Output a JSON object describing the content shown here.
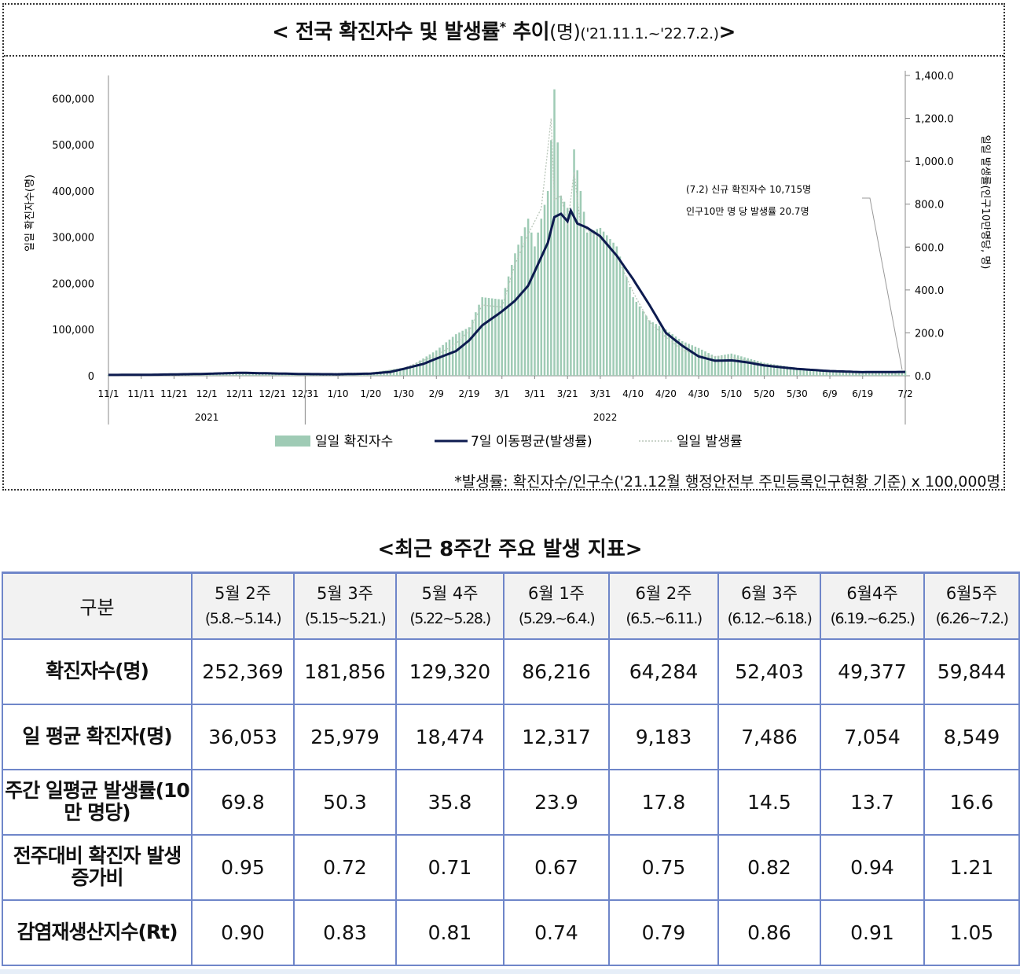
{
  "chart": {
    "title_main": "< 전국 확진자수 및 발생률",
    "title_star": "*",
    "title_suffix": " 추이",
    "title_unit": "(명)",
    "title_range": "('21.11.1.~'22.7.2.)",
    "title_close": ">",
    "annotation_line1": "(7.2) 신규 확진자수 10,715명",
    "annotation_line2": "인구10만 명 당 발생률 20.7명",
    "footnote": "*발생률: 확진자수/인구수('21.12월 행정안전부 주민등록인구현황 기준) x 100,000명",
    "colors": {
      "bar": "#9fcbb5",
      "ma_line": "#0d1b4f",
      "daily_rate": "#b9c6b9",
      "axis": "#888888"
    }
  },
  "chart_data": {
    "type": "bar+line",
    "title": "< 전국 확진자수 및 발생률* 추이(명)('21.11.1.~'22.7.2.)>",
    "ylabel_left": "일일 확진자수(명)",
    "ylabel_right": "일일 발생률(인구10만명당, 명)",
    "ylim_left": [
      0,
      650000
    ],
    "ylim_right": [
      0,
      1400
    ],
    "yticks_left": [
      "0",
      "100,000",
      "200,000",
      "300,000",
      "400,000",
      "500,000",
      "600,000"
    ],
    "yticks_right": [
      "0.0",
      "200.0",
      "400.0",
      "600.0",
      "800.0",
      "1,000.0",
      "1,200.0",
      "1,400.0"
    ],
    "x_start": "2021-11-01",
    "x_end": "2022-07-02",
    "xticks": [
      "11/1",
      "11/11",
      "11/21",
      "12/1",
      "12/11",
      "12/21",
      "12/31",
      "1/10",
      "1/20",
      "1/30",
      "2/9",
      "2/19",
      "3/1",
      "3/11",
      "3/21",
      "3/31",
      "4/10",
      "4/20",
      "4/30",
      "5/10",
      "5/20",
      "5/30",
      "6/9",
      "6/19",
      "7/2"
    ],
    "year_labels": [
      "2021",
      "2022"
    ],
    "legend": [
      "일일 확진자수",
      "7일 이동평균(발생률)",
      "일일 발생률"
    ],
    "legend_position": "bottom",
    "series": [
      {
        "name": "일일 확진자수",
        "kind": "bar",
        "axis": "left",
        "x": [
          "11/1",
          "11/15",
          "12/1",
          "12/15",
          "12/31",
          "1/10",
          "1/20",
          "1/26",
          "2/1",
          "2/9",
          "2/15",
          "2/19",
          "2/23",
          "3/1",
          "3/5",
          "3/9",
          "3/11",
          "3/15",
          "3/17",
          "3/19",
          "3/22",
          "3/23",
          "3/27",
          "3/31",
          "4/5",
          "4/10",
          "4/15",
          "4/20",
          "4/25",
          "4/30",
          "5/5",
          "5/10",
          "5/20",
          "5/30",
          "6/9",
          "6/19",
          "6/26",
          "7/2"
        ],
        "values": [
          1700,
          2400,
          5100,
          7000,
          4800,
          3000,
          6800,
          13000,
          20000,
          55000,
          90000,
          105000,
          170000,
          165000,
          265000,
          340000,
          280000,
          400000,
          620000,
          390000,
          350000,
          490000,
          310000,
          320000,
          280000,
          170000,
          120000,
          100000,
          75000,
          60000,
          42000,
          48000,
          28000,
          17000,
          12000,
          9000,
          7500,
          10715
        ]
      },
      {
        "name": "7일 이동평균(발생률)",
        "kind": "line",
        "axis": "right",
        "x": [
          "11/1",
          "11/15",
          "12/1",
          "12/11",
          "12/21",
          "12/31",
          "1/10",
          "1/20",
          "1/26",
          "1/30",
          "2/5",
          "2/9",
          "2/15",
          "2/19",
          "2/23",
          "3/1",
          "3/5",
          "3/9",
          "3/12",
          "3/15",
          "3/17",
          "3/19",
          "3/21",
          "3/22",
          "3/24",
          "3/27",
          "3/31",
          "4/5",
          "4/10",
          "4/15",
          "4/20",
          "4/25",
          "4/30",
          "5/5",
          "5/10",
          "5/15",
          "5/20",
          "5/30",
          "6/9",
          "6/19",
          "7/2"
        ],
        "values": [
          4,
          5,
          9,
          14,
          11,
          8,
          7,
          10,
          18,
          32,
          55,
          80,
          115,
          165,
          235,
          300,
          350,
          420,
          520,
          620,
          740,
          755,
          720,
          770,
          710,
          690,
          650,
          560,
          450,
          330,
          200,
          140,
          90,
          70,
          72,
          62,
          48,
          32,
          22,
          17,
          18
        ]
      },
      {
        "name": "일일 발생률",
        "kind": "dotted-line",
        "axis": "right",
        "x": [
          "11/1",
          "12/1",
          "12/31",
          "1/20",
          "1/30",
          "2/9",
          "2/15",
          "2/19",
          "2/23",
          "3/1",
          "3/5",
          "3/9",
          "3/13",
          "3/16",
          "3/17",
          "3/19",
          "3/21",
          "3/23",
          "3/25",
          "3/31",
          "4/5",
          "4/10",
          "4/15",
          "4/20",
          "4/25",
          "4/30",
          "5/10",
          "5/20",
          "5/30",
          "6/9",
          "6/19",
          "7/2"
        ],
        "values": [
          4,
          10,
          9,
          13,
          35,
          95,
          150,
          210,
          330,
          320,
          520,
          660,
          780,
          1200,
          820,
          840,
          700,
          950,
          700,
          640,
          560,
          390,
          250,
          180,
          120,
          95,
          85,
          55,
          32,
          22,
          17,
          20.7
        ]
      }
    ]
  },
  "table": {
    "title": "<최근 8주간 주요 발생 지표>",
    "corner": "구분",
    "weeks": [
      {
        "label": "5월 2주",
        "range": "(5.8.~5.14.)"
      },
      {
        "label": "5월 3주",
        "range": "(5.15~5.21.)"
      },
      {
        "label": "5월 4주",
        "range": "(5.22~5.28.)"
      },
      {
        "label": "6월 1주",
        "range": "(5.29.~6.4.)"
      },
      {
        "label": "6월 2주",
        "range": "(6.5.~6.11.)"
      },
      {
        "label": "6월 3주",
        "range": "(6.12.~6.18.)"
      },
      {
        "label": "6월4주",
        "range": "(6.19.~6.25.)"
      },
      {
        "label": "6월5주",
        "range": "(6.26~7.2.)"
      }
    ],
    "rows": [
      {
        "label": "확진자수(명)",
        "values": [
          "252,369",
          "181,856",
          "129,320",
          "86,216",
          "64,284",
          "52,403",
          "49,377",
          "59,844"
        ]
      },
      {
        "label": "일 평균 확진자(명)",
        "values": [
          "36,053",
          "25,979",
          "18,474",
          "12,317",
          "9,183",
          "7,486",
          "7,054",
          "8,549"
        ]
      },
      {
        "label": "주간 일평균 발생률(10만 명당)",
        "values": [
          "69.8",
          "50.3",
          "35.8",
          "23.9",
          "17.8",
          "14.5",
          "13.7",
          "16.6"
        ]
      },
      {
        "label": "전주대비 확진자 발생 증가비",
        "values": [
          "0.95",
          "0.72",
          "0.71",
          "0.67",
          "0.75",
          "0.82",
          "0.94",
          "1.21"
        ]
      },
      {
        "label": "감염재생산지수(Rt)",
        "values": [
          "0.90",
          "0.83",
          "0.81",
          "0.74",
          "0.79",
          "0.86",
          "0.91",
          "1.05"
        ]
      }
    ]
  }
}
